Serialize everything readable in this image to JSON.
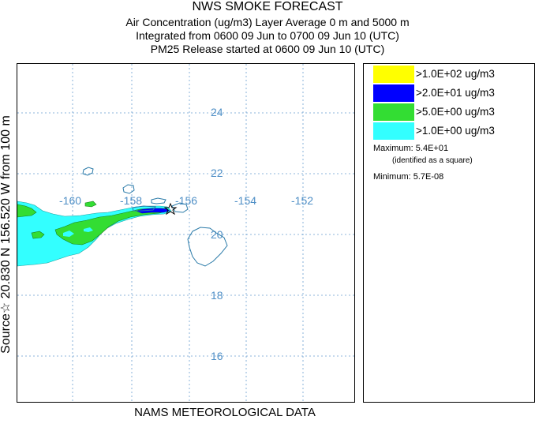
{
  "titles": {
    "main": "NWS SMOKE FORECAST",
    "line2": "Air Concentration (ug/m3) Layer Average    0 m and  5000 m",
    "line3": "Integrated from 0600 09 Jun to 0700 09 Jun 10 (UTC)",
    "line4": "PM25 Release started at 0600 09 Jun 10 (UTC)"
  },
  "side_label": "Source☆ 20.830 N 156.520 W     from  100 m",
  "bottom_label": "NAMS METEOROLOGICAL DATA",
  "map": {
    "longitude_labels": [
      "-160",
      "-158",
      "-156",
      "-154",
      "-152"
    ],
    "latitude_labels": [
      "24",
      "22",
      "20",
      "18",
      "16"
    ],
    "grid_color": "#6a9fd0",
    "label_color": "#4f8fc6",
    "coast_color": "#2a7aa8"
  },
  "legend": {
    "entries": [
      {
        "color": "#ffff00",
        "label": ">1.0E+02 ug/m3"
      },
      {
        "color": "#0000ff",
        "label": ">2.0E+01 ug/m3"
      },
      {
        "color": "#33dd33",
        "label": ">5.0E+00 ug/m3"
      },
      {
        "color": "#33ffff",
        "label": ">1.0E+00 ug/m3"
      }
    ],
    "maximum_label": "Maximum: 5.4E+01",
    "maximum_note": "(identified as a square)",
    "minimum_label": "Minimum: 5.7E-08"
  }
}
